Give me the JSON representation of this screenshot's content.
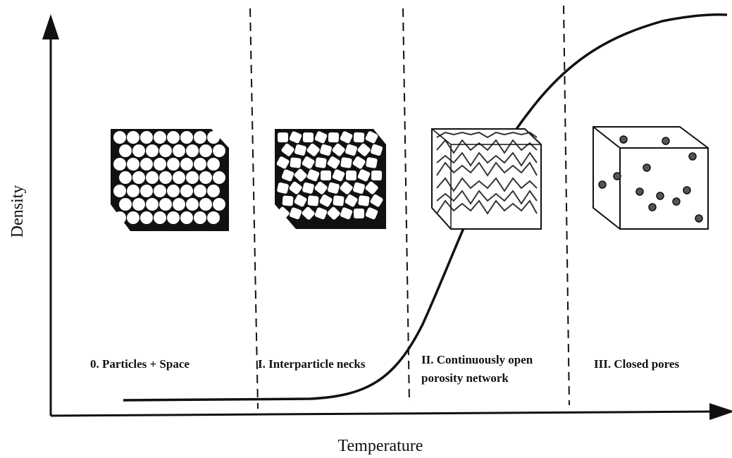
{
  "axes": {
    "y_label": "Density",
    "x_label": "Temperature"
  },
  "stages": [
    {
      "lines": [
        "0. Particles + Space"
      ]
    },
    {
      "lines": [
        "I. Interparticle necks"
      ]
    },
    {
      "lines": [
        "II. Continuously open",
        "porosity network"
      ]
    },
    {
      "lines": [
        "III. Closed pores"
      ]
    }
  ]
}
